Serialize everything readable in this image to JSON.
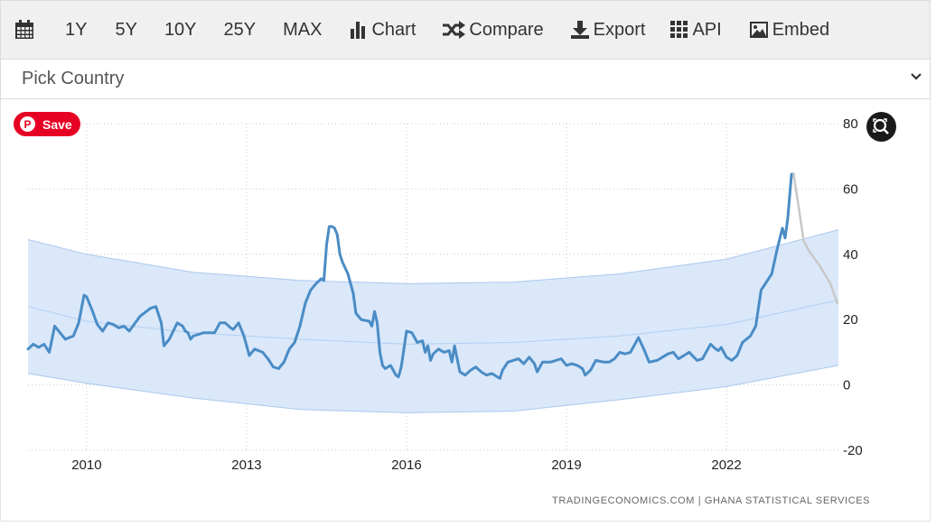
{
  "toolbar": {
    "buttons": [
      {
        "id": "calendar",
        "label": "",
        "icon": "calendar-icon"
      },
      {
        "id": "1y",
        "label": "1Y"
      },
      {
        "id": "5y",
        "label": "5Y"
      },
      {
        "id": "10y",
        "label": "10Y"
      },
      {
        "id": "25y",
        "label": "25Y"
      },
      {
        "id": "max",
        "label": "MAX"
      },
      {
        "id": "chart",
        "label": "Chart",
        "icon": "bar-chart-icon"
      },
      {
        "id": "compare",
        "label": "Compare",
        "icon": "shuffle-icon"
      },
      {
        "id": "export",
        "label": "Export",
        "icon": "download-icon"
      },
      {
        "id": "api",
        "label": "API",
        "icon": "grid-icon"
      },
      {
        "id": "embed",
        "label": "Embed",
        "icon": "image-icon"
      }
    ]
  },
  "country_picker": {
    "label": "Pick Country"
  },
  "save_button": {
    "label": "Save"
  },
  "credits": "TRADINGECONOMICS.COM  |  GHANA STATISTICAL SERVICES",
  "colors": {
    "series": "#4a8cc5",
    "forecast": "#c8c8c8",
    "band_fill": "#d6e6fa",
    "band_edge": "#a9c8ee",
    "save_red": "#e60023"
  },
  "chart_data": {
    "type": "line",
    "title": "",
    "xlabel": "",
    "ylabel": "",
    "x_range": [
      2008.9,
      2024.1
    ],
    "ylim": [
      -20,
      80
    ],
    "y_ticks": [
      80,
      60,
      40,
      20,
      0,
      -20
    ],
    "x_ticks": [
      2010,
      2013,
      2016,
      2019,
      2022
    ],
    "y_axis_side": "right",
    "grid": true,
    "series": [
      {
        "role": "actual",
        "points": [
          [
            2008.9,
            11
          ],
          [
            2009.0,
            12.5
          ],
          [
            2009.1,
            11.5
          ],
          [
            2009.2,
            12.5
          ],
          [
            2009.3,
            10
          ],
          [
            2009.4,
            18
          ],
          [
            2009.5,
            16
          ],
          [
            2009.6,
            14
          ],
          [
            2009.75,
            15
          ],
          [
            2009.85,
            19
          ],
          [
            2009.95,
            27.5
          ],
          [
            2010.0,
            27
          ],
          [
            2010.1,
            23
          ],
          [
            2010.2,
            18.5
          ],
          [
            2010.3,
            16.5
          ],
          [
            2010.4,
            19
          ],
          [
            2010.5,
            18.5
          ],
          [
            2010.6,
            17.5
          ],
          [
            2010.7,
            18
          ],
          [
            2010.8,
            16.5
          ],
          [
            2011.0,
            21
          ],
          [
            2011.2,
            23.5
          ],
          [
            2011.3,
            24
          ],
          [
            2011.4,
            19
          ],
          [
            2011.45,
            12
          ],
          [
            2011.55,
            14
          ],
          [
            2011.7,
            19
          ],
          [
            2011.8,
            18
          ],
          [
            2011.85,
            16.5
          ],
          [
            2011.9,
            16
          ],
          [
            2011.95,
            14
          ],
          [
            2012.0,
            15
          ],
          [
            2012.2,
            16
          ],
          [
            2012.4,
            16
          ],
          [
            2012.5,
            19
          ],
          [
            2012.6,
            19
          ],
          [
            2012.7,
            17.5
          ],
          [
            2012.75,
            17
          ],
          [
            2012.85,
            19
          ],
          [
            2012.95,
            15
          ],
          [
            2013.0,
            12
          ],
          [
            2013.05,
            9
          ],
          [
            2013.15,
            11
          ],
          [
            2013.3,
            10
          ],
          [
            2013.4,
            8
          ],
          [
            2013.5,
            5.5
          ],
          [
            2013.6,
            5
          ],
          [
            2013.7,
            7
          ],
          [
            2013.8,
            11
          ],
          [
            2013.9,
            13
          ],
          [
            2014.0,
            18
          ],
          [
            2014.1,
            25
          ],
          [
            2014.2,
            29
          ],
          [
            2014.3,
            31
          ],
          [
            2014.4,
            32.5
          ],
          [
            2014.45,
            32
          ],
          [
            2014.5,
            43
          ],
          [
            2014.55,
            48.5
          ],
          [
            2014.6,
            48.5
          ],
          [
            2014.65,
            48
          ],
          [
            2014.7,
            46
          ],
          [
            2014.75,
            40
          ],
          [
            2014.8,
            37.5
          ],
          [
            2014.9,
            34
          ],
          [
            2015.0,
            28
          ],
          [
            2015.05,
            22
          ],
          [
            2015.15,
            20
          ],
          [
            2015.3,
            19.5
          ],
          [
            2015.35,
            18
          ],
          [
            2015.4,
            22.5
          ],
          [
            2015.45,
            19
          ],
          [
            2015.5,
            10
          ],
          [
            2015.55,
            6
          ],
          [
            2015.6,
            5
          ],
          [
            2015.7,
            6
          ],
          [
            2015.8,
            3
          ],
          [
            2015.85,
            2.5
          ],
          [
            2015.9,
            5.5
          ],
          [
            2016.0,
            16.5
          ],
          [
            2016.1,
            16
          ],
          [
            2016.2,
            13
          ],
          [
            2016.3,
            13.5
          ],
          [
            2016.35,
            10
          ],
          [
            2016.4,
            12
          ],
          [
            2016.45,
            7.5
          ],
          [
            2016.5,
            9.5
          ],
          [
            2016.6,
            11
          ],
          [
            2016.7,
            10
          ],
          [
            2016.8,
            10.5
          ],
          [
            2016.85,
            7
          ],
          [
            2016.9,
            12
          ],
          [
            2017.0,
            4
          ],
          [
            2017.1,
            3
          ],
          [
            2017.2,
            4.5
          ],
          [
            2017.3,
            5.5
          ],
          [
            2017.4,
            4
          ],
          [
            2017.5,
            3
          ],
          [
            2017.6,
            3.5
          ],
          [
            2017.75,
            2
          ],
          [
            2017.8,
            4.5
          ],
          [
            2017.9,
            7
          ],
          [
            2018.0,
            7.5
          ],
          [
            2018.1,
            8
          ],
          [
            2018.2,
            6.5
          ],
          [
            2018.3,
            8.5
          ],
          [
            2018.4,
            6.5
          ],
          [
            2018.45,
            4
          ],
          [
            2018.55,
            7
          ],
          [
            2018.7,
            7
          ],
          [
            2018.8,
            7.5
          ],
          [
            2018.9,
            8
          ],
          [
            2019.0,
            6
          ],
          [
            2019.1,
            6.5
          ],
          [
            2019.2,
            6
          ],
          [
            2019.3,
            5
          ],
          [
            2019.35,
            3
          ],
          [
            2019.45,
            4.5
          ],
          [
            2019.55,
            7.5
          ],
          [
            2019.7,
            7
          ],
          [
            2019.8,
            7
          ],
          [
            2019.9,
            8
          ],
          [
            2020.0,
            10
          ],
          [
            2020.1,
            9.5
          ],
          [
            2020.2,
            10
          ],
          [
            2020.35,
            14.5
          ],
          [
            2020.45,
            11
          ],
          [
            2020.55,
            7
          ],
          [
            2020.7,
            7.5
          ],
          [
            2020.8,
            8.5
          ],
          [
            2020.9,
            9.5
          ],
          [
            2021.0,
            10
          ],
          [
            2021.1,
            8
          ],
          [
            2021.2,
            9
          ],
          [
            2021.3,
            10
          ],
          [
            2021.45,
            7.5
          ],
          [
            2021.55,
            8
          ],
          [
            2021.6,
            9.5
          ],
          [
            2021.7,
            12.5
          ],
          [
            2021.8,
            11
          ],
          [
            2021.85,
            10.5
          ],
          [
            2021.9,
            11.5
          ],
          [
            2022.0,
            8.5
          ],
          [
            2022.1,
            7.5
          ],
          [
            2022.2,
            9
          ],
          [
            2022.3,
            13
          ],
          [
            2022.45,
            15
          ],
          [
            2022.55,
            18
          ],
          [
            2022.65,
            29
          ],
          [
            2022.75,
            31.5
          ],
          [
            2022.85,
            34
          ],
          [
            2022.95,
            41.5
          ],
          [
            2023.05,
            48
          ],
          [
            2023.1,
            45
          ],
          [
            2023.15,
            51
          ],
          [
            2023.22,
            64.5
          ],
          [
            2023.26,
            64.5
          ]
        ]
      },
      {
        "role": "forecast",
        "points": [
          [
            2023.26,
            64.5
          ],
          [
            2023.35,
            55
          ],
          [
            2023.45,
            44
          ],
          [
            2023.55,
            41
          ],
          [
            2023.75,
            36.5
          ],
          [
            2023.95,
            31
          ],
          [
            2024.08,
            25
          ]
        ]
      }
    ],
    "band": {
      "upper": [
        [
          2008.9,
          44.5
        ],
        [
          2010,
          40
        ],
        [
          2012,
          34.5
        ],
        [
          2014,
          32
        ],
        [
          2016,
          31
        ],
        [
          2018,
          31.5
        ],
        [
          2020,
          34
        ],
        [
          2022,
          38.5
        ],
        [
          2024.1,
          47.5
        ]
      ],
      "center": [
        [
          2008.9,
          24
        ],
        [
          2010,
          19.5
        ],
        [
          2012,
          16
        ],
        [
          2014,
          14
        ],
        [
          2016,
          12.5
        ],
        [
          2018,
          13
        ],
        [
          2020,
          15
        ],
        [
          2022,
          18.5
        ],
        [
          2024.1,
          26
        ]
      ],
      "lower": [
        [
          2008.9,
          3.5
        ],
        [
          2010,
          0.5
        ],
        [
          2012,
          -4
        ],
        [
          2014,
          -7.5
        ],
        [
          2016,
          -8.5
        ],
        [
          2018,
          -8
        ],
        [
          2020,
          -4.5
        ],
        [
          2022,
          -0.5
        ],
        [
          2024.1,
          6
        ]
      ]
    }
  }
}
